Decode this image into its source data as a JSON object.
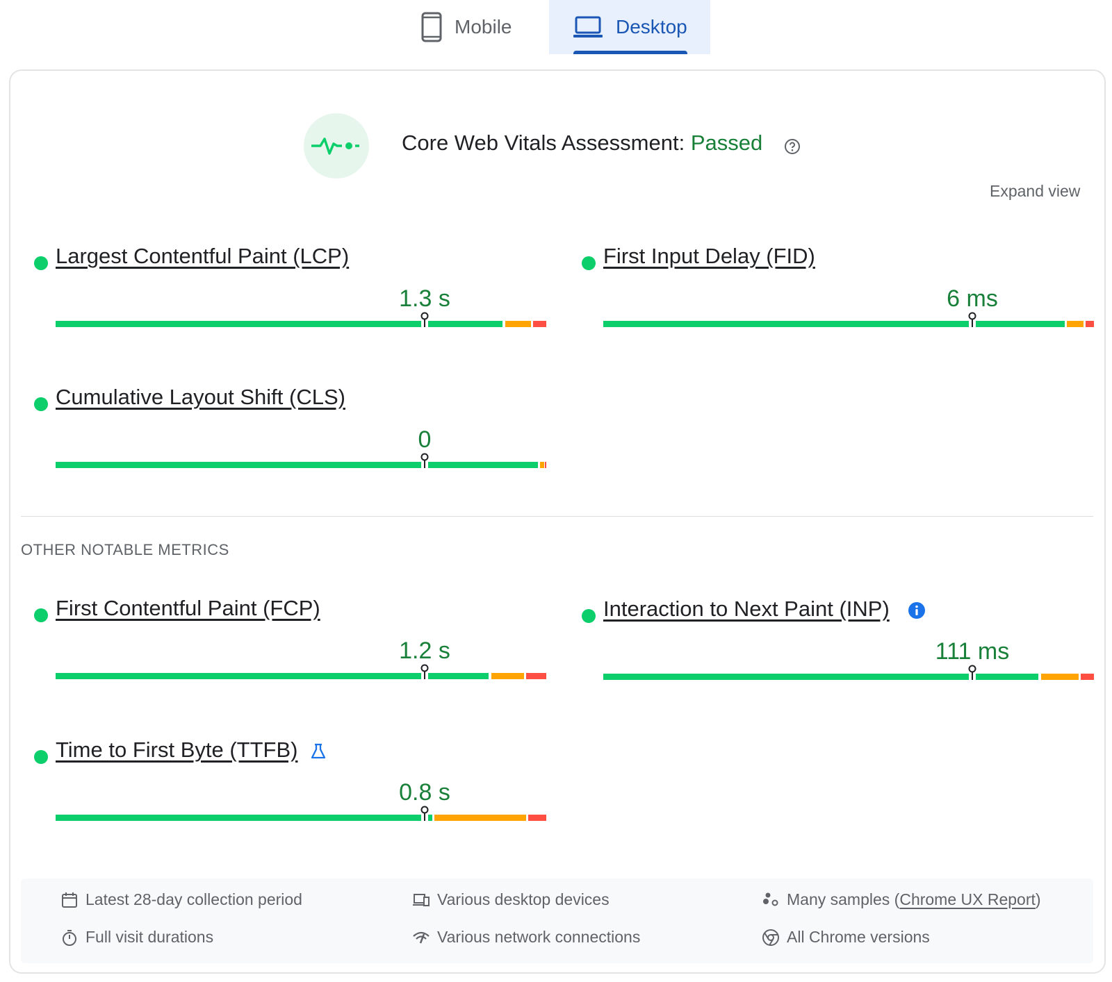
{
  "tabs": {
    "mobile": {
      "label": "Mobile"
    },
    "desktop": {
      "label": "Desktop",
      "selected": true
    }
  },
  "assessment": {
    "prefix": "Core Web Vitals Assessment:",
    "status": "Passed"
  },
  "expand_label": "Expand view",
  "metrics": {
    "lcp": {
      "name": "Largest Contentful Paint (LCP)",
      "value": "1.3 s"
    },
    "fid": {
      "name": "First Input Delay (FID)",
      "value": "6 ms"
    },
    "cls": {
      "name": "Cumulative Layout Shift (CLS)",
      "value": "0"
    },
    "fcp": {
      "name": "First Contentful Paint (FCP)",
      "value": "1.2 s"
    },
    "inp": {
      "name": "Interaction to Next Paint (INP)",
      "value": "111 ms"
    },
    "ttfb": {
      "name": "Time to First Byte (TTFB)",
      "value": "0.8 s"
    }
  },
  "other_label": "OTHER NOTABLE METRICS",
  "footer": {
    "period": "Latest 28-day collection period",
    "devices": "Various desktop devices",
    "samples_prefix": "Many samples (",
    "samples_link": "Chrome UX Report",
    "samples_suffix": ")",
    "durations": "Full visit durations",
    "network": "Various network connections",
    "chrome": "All Chrome versions"
  },
  "colors": {
    "good": "#0cce6b",
    "average": "#ffa400",
    "poor": "#ff4e42",
    "passed": "#188038",
    "accent": "#1a56b4"
  }
}
